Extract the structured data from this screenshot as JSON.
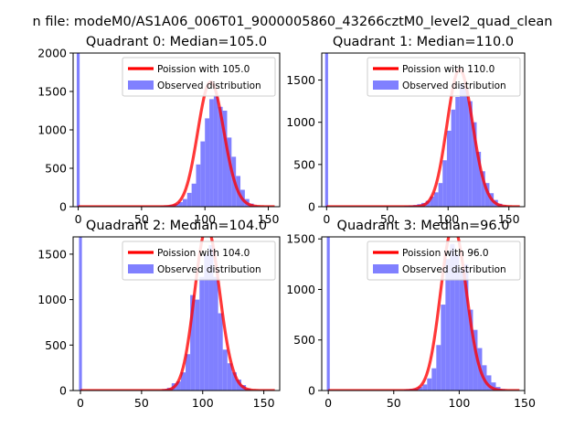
{
  "figure": {
    "suptitle": "n file: modeM0/AS1A06_006T01_9000005860_43266cztM0_level2_quad_clean"
  },
  "chart_data": [
    {
      "type": "bar",
      "title": "Quadrant 0: Median=105.0",
      "xlabel": "",
      "ylabel": "",
      "xlim": [
        -4,
        159
      ],
      "ylim": [
        0,
        2000
      ],
      "xticks": [
        0,
        50,
        100,
        150
      ],
      "yticks": [
        0,
        500,
        1000,
        1500,
        2000
      ],
      "mean": 105.0,
      "spike": {
        "x": 0,
        "value": 2000
      },
      "bin_width": 3.5,
      "bins": [
        [
          65,
          10
        ],
        [
          68.5,
          15
        ],
        [
          72,
          25
        ],
        [
          75.5,
          35
        ],
        [
          79,
          60
        ],
        [
          82.5,
          100
        ],
        [
          86,
          180
        ],
        [
          89.5,
          300
        ],
        [
          93,
          550
        ],
        [
          96.5,
          850
        ],
        [
          100,
          1150
        ],
        [
          103.5,
          1400
        ],
        [
          107,
          1450
        ],
        [
          110.5,
          1300
        ],
        [
          114,
          1250
        ],
        [
          117.5,
          900
        ],
        [
          121,
          650
        ],
        [
          124.5,
          400
        ],
        [
          128,
          220
        ],
        [
          131.5,
          100
        ],
        [
          135,
          40
        ],
        [
          138.5,
          15
        ]
      ],
      "legend": {
        "position": "upper right",
        "entries": [
          "Poission with 105.0",
          "Observed distribution"
        ]
      },
      "series": [
        {
          "name": "Poission with 105.0",
          "kind": "poisson-curve",
          "color": "#ff0000"
        },
        {
          "name": "Observed distribution",
          "kind": "histogram",
          "color": "#8080ff"
        }
      ]
    },
    {
      "type": "bar",
      "title": "Quadrant 1: Median=110.0",
      "xlabel": "",
      "ylabel": "",
      "xlim": [
        -4,
        163
      ],
      "ylim": [
        0,
        1820
      ],
      "xticks": [
        0,
        50,
        100,
        150
      ],
      "yticks": [
        0,
        500,
        1000,
        1500
      ],
      "mean": 110.0,
      "spike": {
        "x": 0,
        "value": 1820
      },
      "bin_width": 3.5,
      "bins": [
        [
          64,
          10
        ],
        [
          67.5,
          15
        ],
        [
          71,
          20
        ],
        [
          74.5,
          30
        ],
        [
          78,
          45
        ],
        [
          81.5,
          70
        ],
        [
          85,
          120
        ],
        [
          88.5,
          170
        ],
        [
          92,
          280
        ],
        [
          95.5,
          550
        ],
        [
          99,
          900
        ],
        [
          102.5,
          1150
        ],
        [
          106,
          1300
        ],
        [
          109.5,
          1450
        ],
        [
          113,
          1400
        ],
        [
          116.5,
          1250
        ],
        [
          120,
          1000
        ],
        [
          123.5,
          650
        ],
        [
          127,
          420
        ],
        [
          130.5,
          280
        ],
        [
          134,
          160
        ],
        [
          137.5,
          80
        ],
        [
          141,
          35
        ],
        [
          144.5,
          15
        ]
      ],
      "legend": {
        "position": "upper right",
        "entries": [
          "Poission with 110.0",
          "Observed distribution"
        ]
      },
      "series": [
        {
          "name": "Poission with 110.0",
          "kind": "poisson-curve",
          "color": "#ff0000"
        },
        {
          "name": "Observed distribution",
          "kind": "histogram",
          "color": "#8080ff"
        }
      ]
    },
    {
      "type": "bar",
      "title": "Quadrant 2: Median=104.0",
      "xlabel": "",
      "ylabel": "",
      "xlim": [
        -6,
        163
      ],
      "ylim": [
        0,
        1690
      ],
      "xticks": [
        0,
        50,
        100,
        150
      ],
      "yticks": [
        0,
        500,
        1000,
        1500
      ],
      "mean": 104.0,
      "spike": {
        "x": 0,
        "value": 1690
      },
      "bin_width": 3.8,
      "bins": [
        [
          67,
          15
        ],
        [
          70.8,
          30
        ],
        [
          74.6,
          80
        ],
        [
          78.4,
          100
        ],
        [
          82.2,
          200
        ],
        [
          86,
          400
        ],
        [
          89.8,
          1050
        ],
        [
          93.6,
          1000
        ],
        [
          97.4,
          1250
        ],
        [
          101.2,
          1500
        ],
        [
          105,
          1600
        ],
        [
          108.8,
          1250
        ],
        [
          112.6,
          850
        ],
        [
          116.4,
          450
        ],
        [
          120.2,
          300
        ],
        [
          124,
          200
        ],
        [
          127.8,
          120
        ],
        [
          131.6,
          60
        ],
        [
          135.4,
          20
        ]
      ],
      "legend": {
        "position": "upper right",
        "entries": [
          "Poission with 104.0",
          "Observed distribution"
        ]
      },
      "series": [
        {
          "name": "Poission with 104.0",
          "kind": "poisson-curve",
          "color": "#ff0000"
        },
        {
          "name": "Observed distribution",
          "kind": "histogram",
          "color": "#8080ff"
        }
      ]
    },
    {
      "type": "bar",
      "title": "Quadrant 3: Median=96.0",
      "xlabel": "",
      "ylabel": "",
      "xlim": [
        -5,
        150
      ],
      "ylim": [
        0,
        1520
      ],
      "xticks": [
        0,
        50,
        100,
        150
      ],
      "yticks": [
        0,
        500,
        1000,
        1500
      ],
      "mean": 96.0,
      "spike": {
        "x": 0,
        "value": 1520
      },
      "bin_width": 3.5,
      "bins": [
        [
          58,
          10
        ],
        [
          61.5,
          15
        ],
        [
          65,
          20
        ],
        [
          68.5,
          35
        ],
        [
          72,
          60
        ],
        [
          75.5,
          120
        ],
        [
          79,
          220
        ],
        [
          82.5,
          450
        ],
        [
          86,
          850
        ],
        [
          89.5,
          1300
        ],
        [
          93,
          1450
        ],
        [
          96.5,
          1350
        ],
        [
          100,
          1200
        ],
        [
          103.5,
          1250
        ],
        [
          107,
          800
        ],
        [
          110.5,
          600
        ],
        [
          114,
          420
        ],
        [
          117.5,
          250
        ],
        [
          121,
          150
        ],
        [
          124.5,
          80
        ],
        [
          128,
          35
        ],
        [
          131.5,
          15
        ]
      ],
      "legend": {
        "position": "upper right",
        "entries": [
          "Poission with 96.0",
          "Observed distribution"
        ]
      },
      "series": [
        {
          "name": "Poission with 96.0",
          "kind": "poisson-curve",
          "color": "#ff0000"
        },
        {
          "name": "Observed distribution",
          "kind": "histogram",
          "color": "#8080ff"
        }
      ]
    }
  ]
}
